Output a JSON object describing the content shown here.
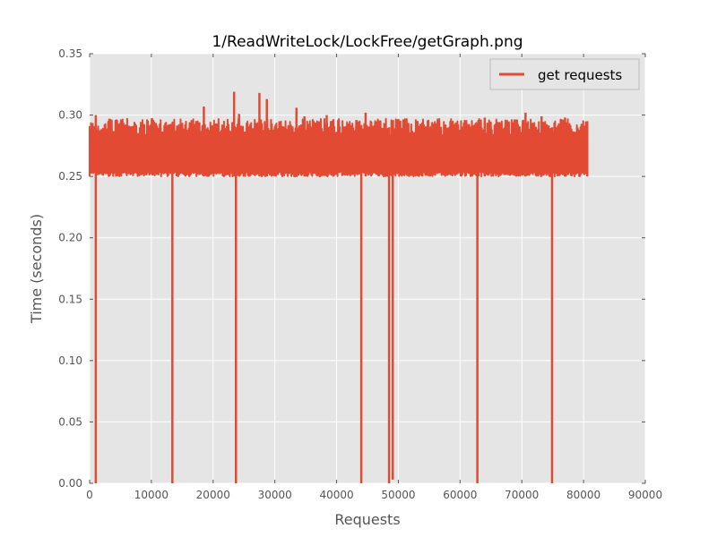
{
  "colors": {
    "series": "#e24a33",
    "plot_background": "#e5e5e5",
    "grid": "#ffffff",
    "frame": "#bcbcbc",
    "text": "#555555"
  },
  "chart_data": {
    "type": "line",
    "title": "1/ReadWriteLock/LockFree/getGraph.png",
    "xlabel": "Requests",
    "ylabel": "Time (seconds)",
    "xlim": [
      0,
      90000
    ],
    "ylim": [
      0,
      0.35
    ],
    "xticks": [
      "0",
      "10000",
      "20000",
      "30000",
      "40000",
      "50000",
      "60000",
      "70000",
      "80000",
      "90000"
    ],
    "yticks": [
      "0.00",
      "0.05",
      "0.10",
      "0.15",
      "0.20",
      "0.25",
      "0.30",
      "0.35"
    ],
    "grid": true,
    "legend_position": "top-right",
    "series": [
      {
        "name": "get requests",
        "n_points": 80600,
        "band_low": 0.25,
        "band_high": 0.295,
        "spikes": [
          {
            "x": 1000,
            "y": 0.3
          },
          {
            "x": 3200,
            "y": 0.297
          },
          {
            "x": 18500,
            "y": 0.307
          },
          {
            "x": 23400,
            "y": 0.319
          },
          {
            "x": 24200,
            "y": 0.301
          },
          {
            "x": 27500,
            "y": 0.318
          },
          {
            "x": 28700,
            "y": 0.313
          },
          {
            "x": 33500,
            "y": 0.306
          },
          {
            "x": 34800,
            "y": 0.299
          },
          {
            "x": 38400,
            "y": 0.3
          },
          {
            "x": 44700,
            "y": 0.302
          },
          {
            "x": 64000,
            "y": 0.298
          },
          {
            "x": 70600,
            "y": 0.302
          },
          {
            "x": 73200,
            "y": 0.299
          },
          {
            "x": 77000,
            "y": 0.298
          }
        ],
        "dips": [
          {
            "x": 1000,
            "y": 0.0
          },
          {
            "x": 13400,
            "y": 0.0
          },
          {
            "x": 23700,
            "y": 0.0
          },
          {
            "x": 44000,
            "y": 0.0
          },
          {
            "x": 48500,
            "y": 0.0
          },
          {
            "x": 49100,
            "y": 0.003
          },
          {
            "x": 62800,
            "y": 0.0
          },
          {
            "x": 74900,
            "y": 0.0
          }
        ]
      }
    ]
  }
}
